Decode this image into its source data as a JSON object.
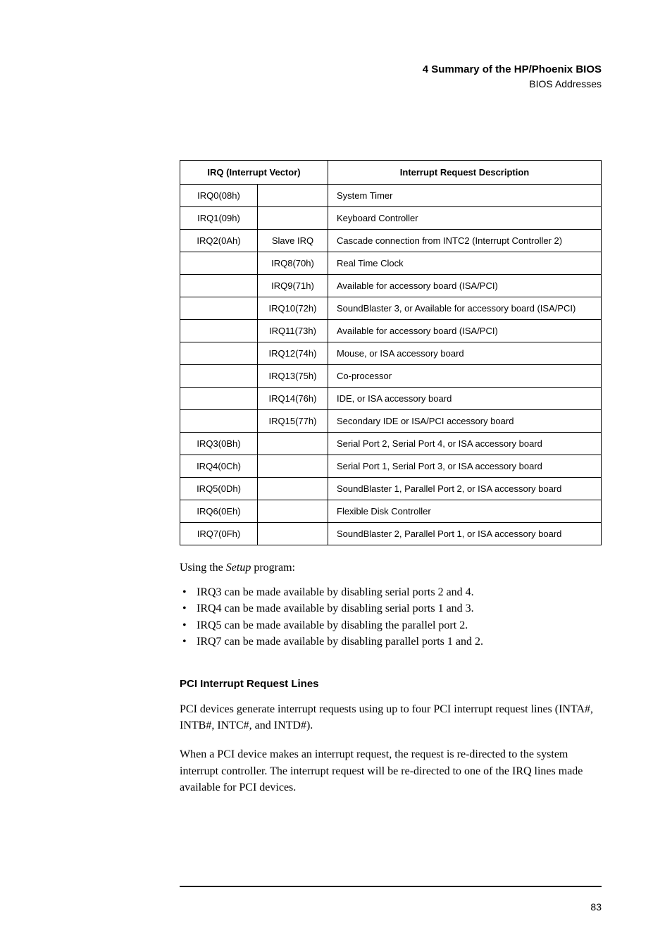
{
  "header": {
    "title": "4   Summary of the HP/Phoenix BIOS",
    "subtitle": "BIOS Addresses"
  },
  "table": {
    "headers": {
      "col_irq": "IRQ (Interrupt Vector)",
      "col_desc": "Interrupt Request Description"
    },
    "rows": [
      {
        "c1": "IRQ0(08h)",
        "c2": "",
        "c3": "System Timer"
      },
      {
        "c1": "IRQ1(09h)",
        "c2": "",
        "c3": "Keyboard Controller"
      },
      {
        "c1": "IRQ2(0Ah)",
        "c2": "Slave IRQ",
        "c3": "Cascade connection from INTC2 (Interrupt Controller 2)"
      },
      {
        "c1": "",
        "c2": "IRQ8(70h)",
        "c3": "Real Time Clock"
      },
      {
        "c1": "",
        "c2": "IRQ9(71h)",
        "c3": "Available for accessory board (ISA/PCI)"
      },
      {
        "c1": "",
        "c2": "IRQ10(72h)",
        "c3": "SoundBlaster 3, or Available for accessory board (ISA/PCI)"
      },
      {
        "c1": "",
        "c2": "IRQ11(73h)",
        "c3": "Available for accessory board (ISA/PCI)"
      },
      {
        "c1": "",
        "c2": "IRQ12(74h)",
        "c3": "Mouse, or ISA accessory board"
      },
      {
        "c1": "",
        "c2": "IRQ13(75h)",
        "c3": "Co-processor"
      },
      {
        "c1": "",
        "c2": "IRQ14(76h)",
        "c3": "IDE, or ISA accessory board"
      },
      {
        "c1": "",
        "c2": "IRQ15(77h)",
        "c3": "Secondary IDE or ISA/PCI accessory board"
      },
      {
        "c1": "IRQ3(0Bh)",
        "c2": "",
        "c3": "Serial Port 2, Serial Port 4, or ISA accessory board"
      },
      {
        "c1": "IRQ4(0Ch)",
        "c2": "",
        "c3": "Serial Port 1, Serial Port 3, or ISA accessory board"
      },
      {
        "c1": "IRQ5(0Dh)",
        "c2": "",
        "c3": "SoundBlaster 1, Parallel Port 2, or ISA accessory board"
      },
      {
        "c1": "IRQ6(0Eh)",
        "c2": "",
        "c3": "Flexible Disk Controller"
      },
      {
        "c1": "IRQ7(0Fh)",
        "c2": "",
        "c3": "SoundBlaster 2, Parallel Port 1, or ISA accessory board"
      }
    ]
  },
  "intro_text": {
    "prefix": "Using the ",
    "italic": "Setup",
    "suffix": " program:"
  },
  "bullets": [
    "IRQ3 can be made available by disabling serial ports 2 and 4.",
    "IRQ4 can be made available by disabling serial ports 1 and 3.",
    "IRQ5 can be made available by disabling the parallel port 2.",
    "IRQ7 can be made available by disabling parallel ports 1 and 2."
  ],
  "section": {
    "heading": "PCI Interrupt Request Lines",
    "p1": "PCI devices generate interrupt requests using up to four PCI interrupt request lines (INTA#, INTB#, INTC#, and INTD#).",
    "p2": "When a PCI device makes an interrupt request, the request is re-directed to the system interrupt controller. The interrupt request will be re-directed to one of the IRQ lines made available for PCI devices."
  },
  "page_number": "83"
}
